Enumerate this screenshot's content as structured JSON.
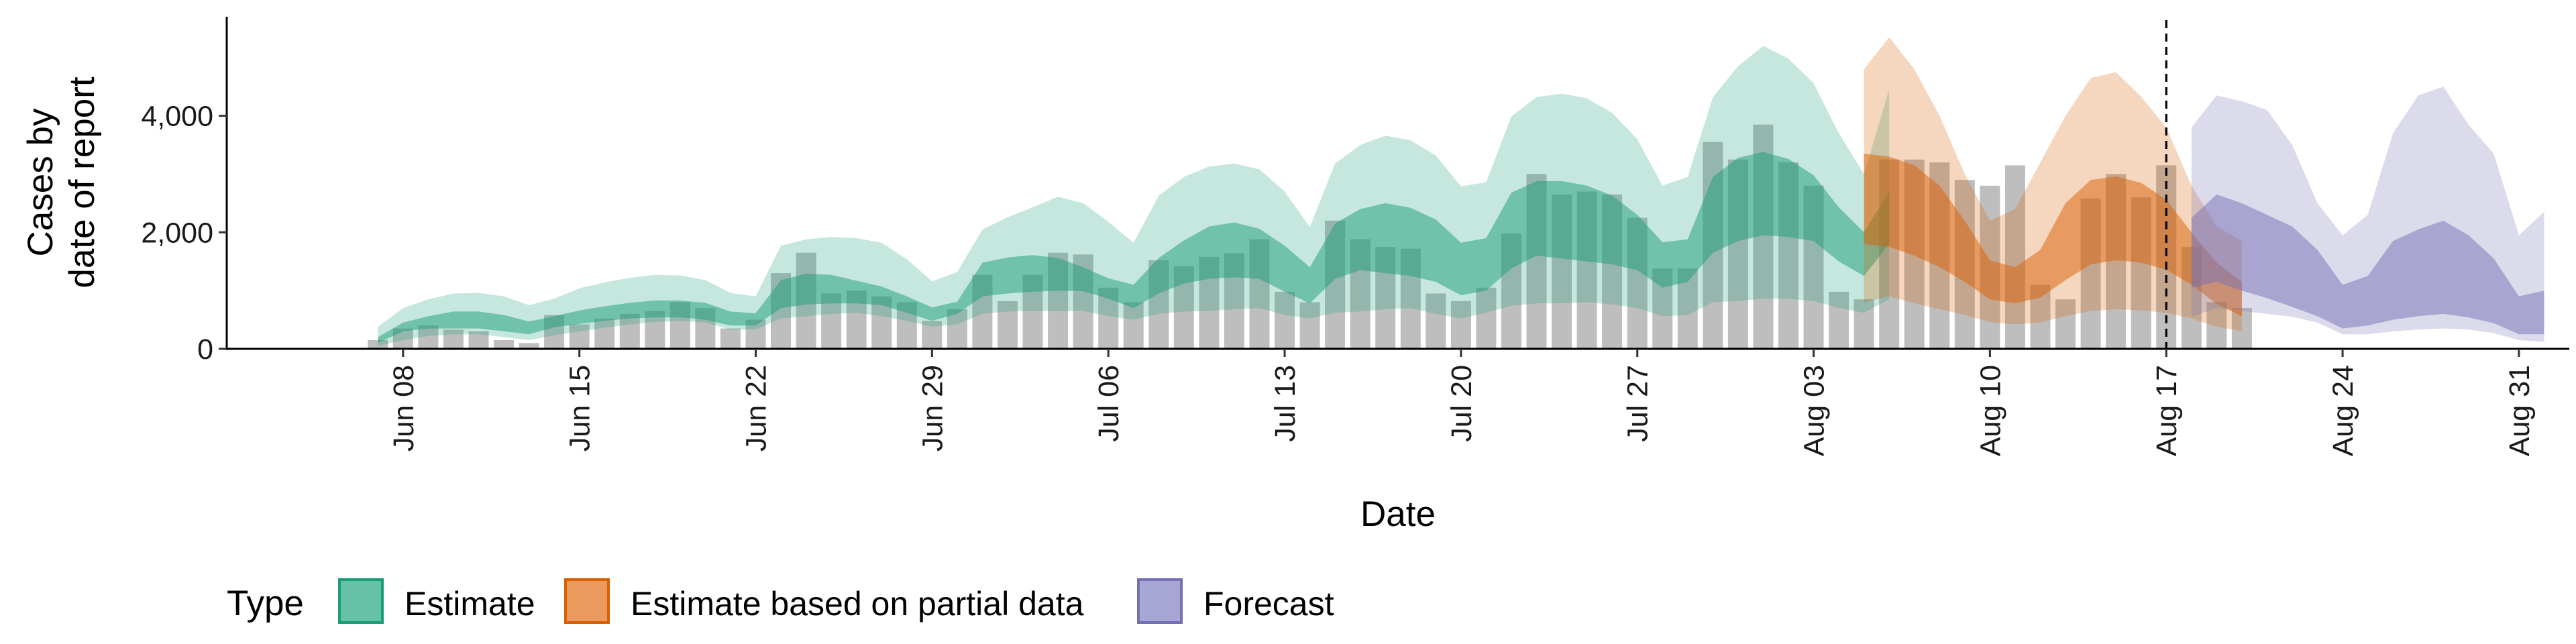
{
  "chart_data": {
    "type": "area",
    "xlabel": "Date",
    "ylabel": [
      "Cases by",
      "date of report"
    ],
    "ylim": [
      0,
      5700
    ],
    "y_ticks": [
      0,
      2000,
      4000
    ],
    "y_tick_labels": [
      "0",
      "2,000",
      "4,000"
    ],
    "x_ticks": [
      "2020-06-08",
      "2020-06-15",
      "2020-06-22",
      "2020-06-29",
      "2020-07-06",
      "2020-07-13",
      "2020-07-20",
      "2020-07-27",
      "2020-08-03",
      "2020-08-10",
      "2020-08-17",
      "2020-08-24",
      "2020-08-31"
    ],
    "x_tick_labels": [
      "Jun 08",
      "Jun 15",
      "Jun 22",
      "Jun 29",
      "Jul 06",
      "Jul 13",
      "Jul 20",
      "Jul 27",
      "Aug 03",
      "Aug 10",
      "Aug 17",
      "Aug 24",
      "Aug 31"
    ],
    "x_range": [
      "2020-06-01",
      "2020-09-02"
    ],
    "forecast_date": "2020-08-17",
    "grid": false,
    "legend": {
      "position": "bottom",
      "title": "Type",
      "entries": [
        {
          "label": "Estimate",
          "fill": "#66c2a4",
          "stroke": "#1b9e77"
        },
        {
          "label": "Estimate based on partial data",
          "fill": "#eb9a5f",
          "stroke": "#d95f02"
        },
        {
          "label": "Forecast",
          "fill": "#a8a6d4",
          "stroke": "#7570b3"
        }
      ]
    },
    "colors": {
      "estimate": "#1b9e77",
      "partial": "#d95f02",
      "forecast": "#7570b3",
      "bars": "#b3b3b3"
    },
    "reported_cases": {
      "start_date": "2020-06-07",
      "values": [
        150,
        350,
        400,
        330,
        300,
        150,
        100,
        580,
        420,
        520,
        600,
        650,
        800,
        700,
        350,
        500,
        1300,
        1650,
        950,
        1000,
        900,
        800,
        480,
        680,
        1270,
        820,
        1270,
        1650,
        1620,
        1050,
        800,
        1520,
        1420,
        1580,
        1640,
        1880,
        980,
        800,
        2200,
        1880,
        1750,
        1720,
        950,
        820,
        1050,
        1980,
        3000,
        2650,
        2700,
        2650,
        2250,
        1380,
        1380,
        3550,
        3250,
        3850,
        3200,
        2800,
        980,
        850,
        3250,
        3250,
        3200,
        2900,
        2800,
        3150,
        1100,
        850,
        2580,
        3000,
        2600,
        3150,
        1750,
        800,
        700
      ]
    },
    "series": [
      {
        "name": "Estimate",
        "start_date": "2020-06-07",
        "lower90": [
          50,
          150,
          220,
          250,
          250,
          200,
          150,
          230,
          300,
          360,
          420,
          460,
          480,
          450,
          330,
          330,
          520,
          560,
          600,
          620,
          560,
          480,
          380,
          420,
          600,
          640,
          650,
          650,
          650,
          560,
          500,
          600,
          640,
          650,
          680,
          700,
          580,
          520,
          620,
          640,
          680,
          700,
          600,
          520,
          620,
          740,
          780,
          780,
          800,
          760,
          700,
          560,
          580,
          800,
          820,
          860,
          860,
          820,
          700,
          620,
          850
        ],
        "lower50": [
          100,
          300,
          350,
          350,
          350,
          300,
          250,
          370,
          430,
          480,
          520,
          540,
          540,
          500,
          400,
          400,
          700,
          760,
          780,
          780,
          750,
          620,
          480,
          600,
          900,
          950,
          980,
          1000,
          990,
          860,
          700,
          950,
          1120,
          1200,
          1230,
          1200,
          980,
          780,
          1200,
          1350,
          1300,
          1250,
          1150,
          920,
          1000,
          1380,
          1600,
          1550,
          1500,
          1450,
          1350,
          1050,
          1150,
          1650,
          1850,
          1950,
          1920,
          1850,
          1500,
          1250,
          1800
        ],
        "upper50": [
          200,
          450,
          560,
          640,
          640,
          580,
          470,
          560,
          660,
          730,
          790,
          830,
          830,
          790,
          640,
          610,
          1180,
          1290,
          1270,
          1170,
          1070,
          900,
          710,
          810,
          1480,
          1570,
          1610,
          1560,
          1400,
          1210,
          1100,
          1560,
          1860,
          2100,
          2170,
          2060,
          1770,
          1400,
          2150,
          2400,
          2500,
          2420,
          2220,
          1820,
          1900,
          2680,
          2880,
          2880,
          2800,
          2630,
          2300,
          1830,
          1880,
          2950,
          3280,
          3380,
          3260,
          2980,
          2430,
          2000,
          2700
        ],
        "upper90": [
          380,
          700,
          850,
          950,
          960,
          900,
          750,
          860,
          1040,
          1140,
          1220,
          1270,
          1260,
          1180,
          960,
          900,
          1770,
          1880,
          1920,
          1900,
          1820,
          1540,
          1160,
          1320,
          2050,
          2260,
          2430,
          2610,
          2500,
          2180,
          1820,
          2630,
          2950,
          3130,
          3180,
          3080,
          2700,
          2090,
          3180,
          3500,
          3660,
          3580,
          3320,
          2790,
          2860,
          3990,
          4320,
          4380,
          4300,
          4050,
          3600,
          2800,
          2950,
          4320,
          4850,
          5200,
          4980,
          4560,
          3700,
          3000,
          4460
        ]
      },
      {
        "name": "Estimate based on partial data",
        "start_date": "2020-08-05",
        "lower90": [
          800,
          900,
          780,
          680,
          580,
          460,
          420,
          450,
          560,
          650,
          680,
          660,
          620,
          520,
          380,
          300
        ],
        "lower50": [
          1800,
          1750,
          1600,
          1400,
          1150,
          850,
          780,
          880,
          1180,
          1450,
          1520,
          1480,
          1360,
          1100,
          770,
          560
        ],
        "upper50": [
          3350,
          3300,
          3150,
          2800,
          2200,
          1520,
          1400,
          1700,
          2500,
          2900,
          2960,
          2850,
          2560,
          2000,
          1480,
          1150
        ],
        "upper90": [
          4800,
          5350,
          4800,
          4000,
          3000,
          2200,
          2400,
          3200,
          4000,
          4650,
          4750,
          4330,
          3800,
          2800,
          2100,
          1850
        ]
      },
      {
        "name": "Forecast",
        "start_date": "2020-08-18",
        "lower90": [
          550,
          700,
          650,
          600,
          550,
          450,
          250,
          250,
          300,
          330,
          350,
          330,
          270,
          150,
          120
        ],
        "lower50": [
          1050,
          1150,
          1000,
          870,
          720,
          560,
          350,
          400,
          500,
          560,
          600,
          540,
          440,
          250,
          250
        ],
        "upper50": [
          2250,
          2650,
          2500,
          2300,
          2100,
          1700,
          1100,
          1250,
          1850,
          2050,
          2200,
          1950,
          1550,
          900,
          1000
        ],
        "upper90": [
          3800,
          4350,
          4250,
          4100,
          3500,
          2500,
          1950,
          2300,
          3700,
          4350,
          4500,
          3850,
          3350,
          1950,
          2350
        ]
      }
    ]
  }
}
